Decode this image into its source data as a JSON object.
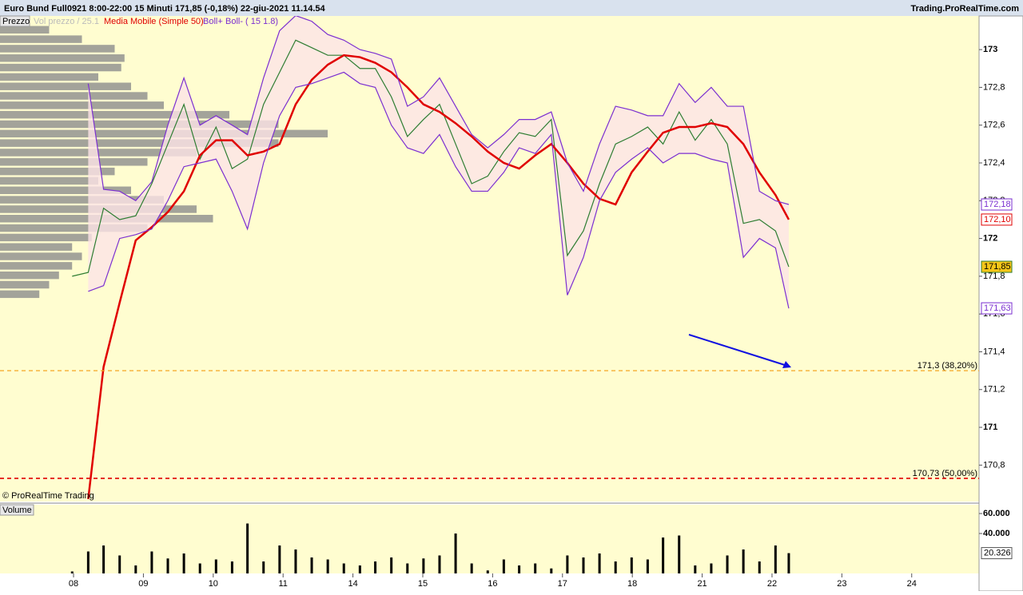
{
  "header": {
    "title": "Euro Bund Full0921 8:00-22:00   15 Minuti    171,85 (-0,18%)    22-giu-2021 11.14.54",
    "site": "Trading.ProRealTime.com",
    "copyright": "© ProRealTime Trading"
  },
  "chart_data": [
    {
      "type": "line",
      "xlim": [
        -1.053,
        12.964
      ],
      "ylim": [
        170.607,
        173.178
      ],
      "yticks": [
        {
          "value": 170.8,
          "label": "170,8"
        },
        171,
        {
          "value": 171.2,
          "label": "171,2"
        },
        {
          "value": 171.4,
          "label": "171,4"
        },
        {
          "value": 171.6,
          "label": "171,6"
        },
        {
          "value": 171.8,
          "label": "171,8"
        },
        172,
        {
          "value": 172.2,
          "label": "172,2"
        },
        {
          "value": 172.4,
          "label": "172,4"
        },
        {
          "value": 172.6,
          "label": "172,6"
        },
        {
          "value": 172.8,
          "label": "172,8"
        },
        173
      ],
      "x": [
        -0.02,
        0.21,
        0.43,
        0.66,
        0.89,
        1.12,
        1.35,
        1.58,
        1.81,
        2.04,
        2.27,
        2.49,
        2.72,
        2.95,
        3.18,
        3.41,
        3.64,
        3.87,
        4.1,
        4.32,
        4.55,
        4.78,
        5.01,
        5.24,
        5.47,
        5.7,
        5.93,
        6.16,
        6.38,
        6.61,
        6.84,
        7.07,
        7.3,
        7.53,
        7.76,
        7.99,
        8.22,
        8.44,
        8.67,
        8.9,
        9.13,
        9.36,
        9.59,
        9.82,
        10.05,
        10.24
      ],
      "series": [
        {
          "name": "Prezzo",
          "color": "#2e7d32",
          "last_label": "171,85",
          "values": [
            171.8,
            171.82,
            172.16,
            172.1,
            172.12,
            172.29,
            172.5,
            172.71,
            172.42,
            172.59,
            172.37,
            172.42,
            172.71,
            172.88,
            173.05,
            173.01,
            172.97,
            172.97,
            172.9,
            172.9,
            172.75,
            172.54,
            172.63,
            172.71,
            172.5,
            172.29,
            172.33,
            172.46,
            172.56,
            172.54,
            172.63,
            171.91,
            172.04,
            172.29,
            172.5,
            172.54,
            172.59,
            172.5,
            172.67,
            172.52,
            172.63,
            172.5,
            172.08,
            172.1,
            172.04,
            171.85
          ]
        },
        {
          "name": "Media Mobile (Simple 50)",
          "color": "#e00000",
          "last_label": "172,10",
          "values": [
            null,
            170.62,
            171.32,
            171.66,
            171.99,
            172.06,
            172.14,
            172.25,
            172.44,
            172.52,
            172.52,
            172.44,
            172.46,
            172.5,
            172.71,
            172.84,
            172.92,
            172.97,
            172.96,
            172.93,
            172.88,
            172.8,
            172.71,
            172.67,
            172.61,
            172.54,
            172.46,
            172.4,
            172.37,
            172.44,
            172.5,
            172.4,
            172.29,
            172.21,
            172.18,
            172.35,
            172.46,
            172.56,
            172.59,
            172.59,
            172.61,
            172.59,
            172.5,
            172.35,
            172.23,
            172.1
          ]
        },
        {
          "name": "Boll+",
          "color": "#7b2fd0",
          "last_label": "172,18",
          "values": [
            null,
            172.82,
            172.26,
            172.25,
            172.2,
            172.3,
            172.6,
            172.85,
            172.6,
            172.65,
            172.6,
            172.55,
            172.85,
            173.1,
            173.18,
            173.15,
            173.08,
            173.05,
            173.0,
            172.98,
            172.95,
            172.7,
            172.75,
            172.85,
            172.7,
            172.55,
            172.48,
            172.55,
            172.63,
            172.63,
            172.67,
            172.4,
            172.25,
            172.5,
            172.7,
            172.68,
            172.65,
            172.65,
            172.82,
            172.72,
            172.8,
            172.7,
            172.7,
            172.25,
            172.2,
            172.18
          ]
        },
        {
          "name": "Boll- ( 15 1.8)",
          "color": "#7b2fd0",
          "last_label": "171,63",
          "values": [
            null,
            171.72,
            171.75,
            172.0,
            172.02,
            172.05,
            172.2,
            172.38,
            172.4,
            172.42,
            172.25,
            172.05,
            172.4,
            172.65,
            172.8,
            172.82,
            172.85,
            172.88,
            172.82,
            172.8,
            172.6,
            172.48,
            172.45,
            172.55,
            172.38,
            172.25,
            172.25,
            172.35,
            172.48,
            172.45,
            172.55,
            171.7,
            171.9,
            172.2,
            172.35,
            172.42,
            172.48,
            172.4,
            172.45,
            172.45,
            172.42,
            172.4,
            171.9,
            172.0,
            171.95,
            171.63
          ]
        }
      ],
      "profile": {
        "name": "Vol prezzo / 25.1",
        "color": "#8c8c8c",
        "levels": [
          173.1,
          173.05,
          173.0,
          172.95,
          172.9,
          172.85,
          172.8,
          172.75,
          172.7,
          172.65,
          172.6,
          172.55,
          172.5,
          172.45,
          172.4,
          172.35,
          172.3,
          172.25,
          172.2,
          172.15,
          172.1,
          172.05,
          172.0,
          171.95,
          171.9,
          171.85,
          171.8,
          171.75,
          171.7
        ],
        "values": [
          15,
          25,
          35,
          38,
          37,
          30,
          40,
          45,
          50,
          70,
          85,
          100,
          85,
          60,
          45,
          35,
          30,
          40,
          50,
          60,
          65,
          45,
          28,
          22,
          25,
          22,
          18,
          15,
          12
        ]
      },
      "levels": [
        {
          "value": 171.3,
          "label": "171,3 (38,20%)",
          "color": "#f5a623"
        },
        {
          "value": 170.73,
          "label": "170,73 (50,00%)",
          "color": "#e00000"
        }
      ]
    },
    {
      "type": "bar",
      "title": "Volume",
      "color": "#000000",
      "xlim": [
        -1.053,
        12.964
      ],
      "ylim": [
        0,
        68800
      ],
      "yticks": [
        {
          "value": 40000,
          "label": "40.000"
        },
        {
          "value": 60000,
          "label": "60.000"
        }
      ],
      "last": {
        "value": 20326,
        "label": "20.326"
      },
      "xticks": [
        {
          "value": 0,
          "label": "08"
        },
        {
          "value": 1,
          "label": "09"
        },
        {
          "value": 2,
          "label": "10"
        },
        {
          "value": 3,
          "label": "11"
        },
        {
          "value": 4,
          "label": "14"
        },
        {
          "value": 5,
          "label": "15"
        },
        {
          "value": 6,
          "label": "16"
        },
        {
          "value": 7,
          "label": "17"
        },
        {
          "value": 8,
          "label": "18"
        },
        {
          "value": 9,
          "label": "21"
        },
        {
          "value": 10,
          "label": "22"
        },
        {
          "value": 11,
          "label": "23"
        },
        {
          "value": 12,
          "label": "24"
        }
      ],
      "x": [
        -0.02,
        0.21,
        0.43,
        0.66,
        0.89,
        1.12,
        1.35,
        1.58,
        1.81,
        2.04,
        2.27,
        2.49,
        2.72,
        2.95,
        3.18,
        3.41,
        3.64,
        3.87,
        4.1,
        4.32,
        4.55,
        4.78,
        5.01,
        5.24,
        5.47,
        5.7,
        5.93,
        6.16,
        6.38,
        6.61,
        6.84,
        7.07,
        7.3,
        7.53,
        7.76,
        7.99,
        8.22,
        8.44,
        8.67,
        8.9,
        9.13,
        9.36,
        9.59,
        9.82,
        10.05,
        10.24
      ],
      "values": [
        2000,
        22000,
        28000,
        18000,
        8000,
        22000,
        15000,
        20000,
        10000,
        14000,
        12000,
        50000,
        12000,
        28000,
        24000,
        16000,
        14000,
        10000,
        8000,
        12000,
        16000,
        10000,
        15000,
        18000,
        40000,
        10000,
        3000,
        14000,
        8000,
        10000,
        5000,
        18000,
        16000,
        20000,
        12000,
        16000,
        14000,
        36000,
        38000,
        8000,
        10000,
        18000,
        24000,
        12000,
        28000,
        20326
      ]
    }
  ]
}
